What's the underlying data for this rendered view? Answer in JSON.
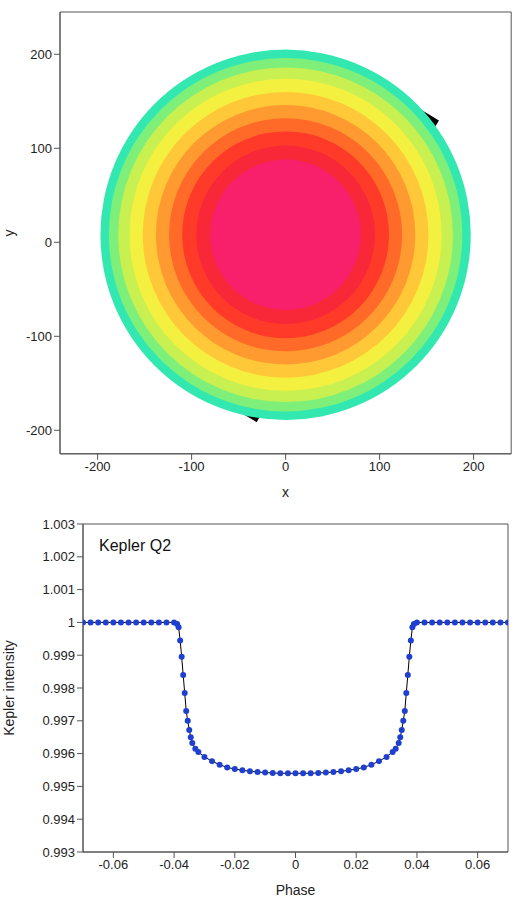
{
  "chart_data": [
    {
      "type": "disk",
      "x_label": "x",
      "y_label": "y",
      "xlim": [
        -240,
        240
      ],
      "ylim": [
        -225,
        245
      ],
      "xticks": [
        -200,
        -100,
        0,
        100,
        200
      ],
      "yticks": [
        -200,
        -100,
        0,
        100,
        200
      ],
      "center": [
        0,
        8
      ],
      "rings": [
        {
          "radius": 197,
          "color": "#33e8b0"
        },
        {
          "radius": 188,
          "color": "#7ef07a"
        },
        {
          "radius": 178,
          "color": "#c8f050"
        },
        {
          "radius": 166,
          "color": "#f4f040"
        },
        {
          "radius": 152,
          "color": "#ffc838"
        },
        {
          "radius": 138,
          "color": "#ff9a30"
        },
        {
          "radius": 124,
          "color": "#ff6a28"
        },
        {
          "radius": 110,
          "color": "#ff3a28"
        },
        {
          "radius": 95,
          "color": "#f82838"
        },
        {
          "radius": 80,
          "color": "#f8206a"
        }
      ],
      "band": {
        "from": [
          -48,
          -181
        ],
        "to": [
          146,
          140
        ],
        "width": 40,
        "color": "#000000"
      }
    },
    {
      "type": "line",
      "annotation": "Kepler Q2",
      "x_label": "Phase",
      "y_label": "Kepler intensity",
      "xlim": [
        -0.07,
        0.07
      ],
      "ylim": [
        0.993,
        1.003
      ],
      "xticks": [
        -0.06,
        -0.04,
        -0.02,
        0,
        0.02,
        0.04,
        0.06
      ],
      "yticks": [
        0.993,
        0.994,
        0.995,
        0.996,
        0.997,
        0.998,
        0.999,
        1,
        1.001,
        1.002,
        1.003
      ],
      "x": [
        -0.07,
        -0.0675,
        -0.065,
        -0.0625,
        -0.06,
        -0.0575,
        -0.055,
        -0.0525,
        -0.05,
        -0.0475,
        -0.045,
        -0.0425,
        -0.04,
        -0.039,
        -0.0385,
        -0.038,
        -0.0375,
        -0.037,
        -0.0365,
        -0.036,
        -0.0355,
        -0.035,
        -0.0345,
        -0.034,
        -0.033,
        -0.032,
        -0.03,
        -0.0275,
        -0.025,
        -0.0225,
        -0.02,
        -0.0175,
        -0.015,
        -0.0125,
        -0.01,
        -0.0075,
        -0.005,
        -0.0025,
        0,
        0.0025,
        0.005,
        0.0075,
        0.01,
        0.0125,
        0.015,
        0.0175,
        0.02,
        0.0225,
        0.025,
        0.0275,
        0.03,
        0.032,
        0.033,
        0.034,
        0.0345,
        0.035,
        0.0355,
        0.036,
        0.0365,
        0.037,
        0.0375,
        0.038,
        0.0385,
        0.039,
        0.04,
        0.0425,
        0.045,
        0.0475,
        0.05,
        0.0525,
        0.055,
        0.0575,
        0.06,
        0.0625,
        0.065,
        0.0675,
        0.07
      ],
      "series": [
        {
          "color": "#1f3fd0",
          "marker": "circle",
          "line_style": "solid",
          "values": [
            1,
            1,
            1,
            1,
            1,
            1,
            1,
            1,
            1,
            1,
            1,
            1,
            1,
            0.99995,
            0.99985,
            0.99945,
            0.99895,
            0.9984,
            0.99785,
            0.9973,
            0.997,
            0.99672,
            0.9965,
            0.99632,
            0.99615,
            0.99605,
            0.9959,
            0.99577,
            0.99566,
            0.99558,
            0.99553,
            0.99549,
            0.99546,
            0.99544,
            0.99542,
            0.99541,
            0.9954,
            0.9954,
            0.9954,
            0.9954,
            0.9954,
            0.99541,
            0.99542,
            0.99544,
            0.99546,
            0.99549,
            0.99553,
            0.99558,
            0.99566,
            0.99577,
            0.9959,
            0.99605,
            0.99615,
            0.99632,
            0.9965,
            0.99672,
            0.997,
            0.9973,
            0.99785,
            0.9984,
            0.99895,
            0.99945,
            0.99985,
            0.99995,
            1,
            1,
            1,
            1,
            1,
            1,
            1,
            1,
            1,
            1,
            1,
            1,
            1
          ]
        }
      ]
    }
  ]
}
